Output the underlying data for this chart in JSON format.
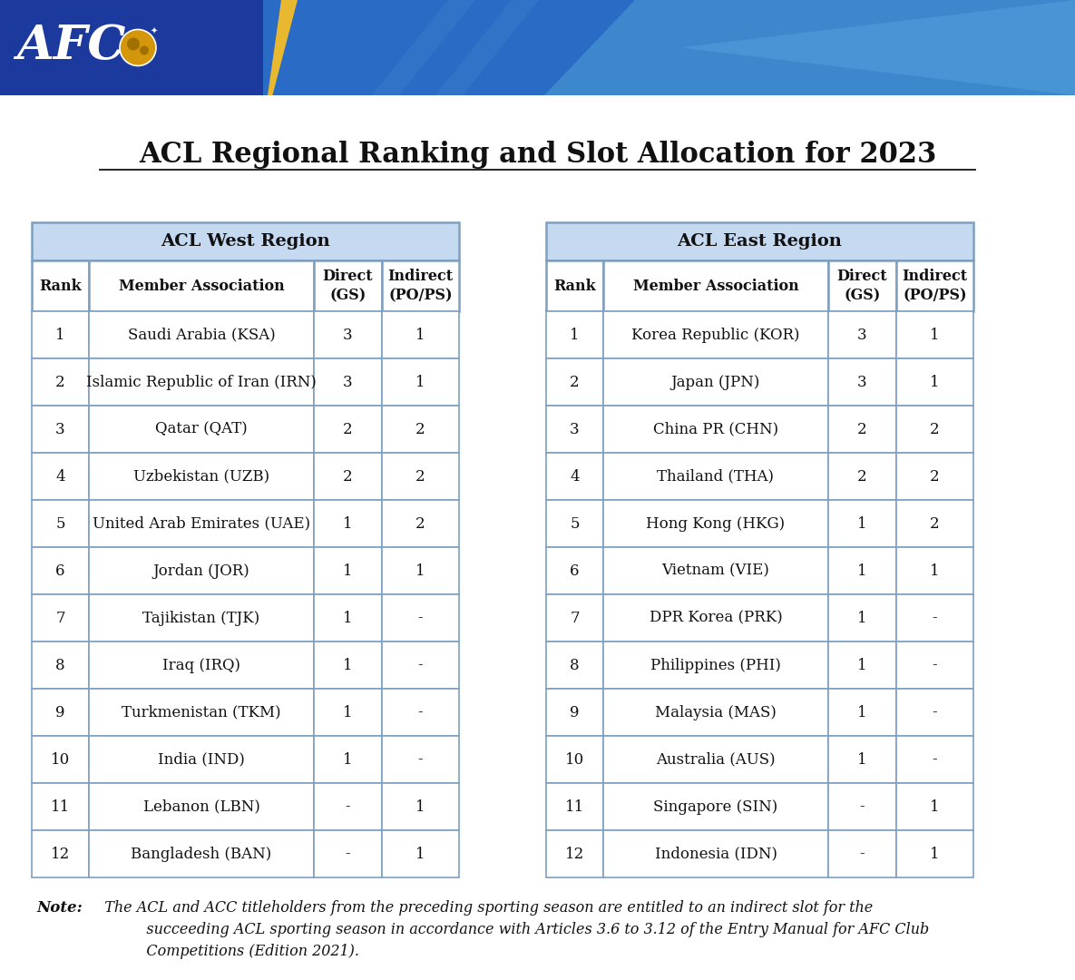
{
  "title": "ACL Regional Ranking and Slot Allocation for 2023",
  "background_color": "#ffffff",
  "header_bg": "#c5d9f1",
  "table_border_color": "#7f9fbf",
  "west_region_title": "ACL West Region",
  "east_region_title": "ACL East Region",
  "col_headers": [
    "Rank",
    "Member Association",
    "Direct\n(GS)",
    "Indirect\n(PO/PS)"
  ],
  "west_data": [
    [
      "1",
      "Saudi Arabia (KSA)",
      "3",
      "1"
    ],
    [
      "2",
      "Islamic Republic of Iran (IRN)",
      "3",
      "1"
    ],
    [
      "3",
      "Qatar (QAT)",
      "2",
      "2"
    ],
    [
      "4",
      "Uzbekistan (UZB)",
      "2",
      "2"
    ],
    [
      "5",
      "United Arab Emirates (UAE)",
      "1",
      "2"
    ],
    [
      "6",
      "Jordan (JOR)",
      "1",
      "1"
    ],
    [
      "7",
      "Tajikistan (TJK)",
      "1",
      "-"
    ],
    [
      "8",
      "Iraq (IRQ)",
      "1",
      "-"
    ],
    [
      "9",
      "Turkmenistan (TKM)",
      "1",
      "-"
    ],
    [
      "10",
      "India (IND)",
      "1",
      "-"
    ],
    [
      "11",
      "Lebanon (LBN)",
      "-",
      "1"
    ],
    [
      "12",
      "Bangladesh (BAN)",
      "-",
      "1"
    ]
  ],
  "east_data": [
    [
      "1",
      "Korea Republic (KOR)",
      "3",
      "1"
    ],
    [
      "2",
      "Japan (JPN)",
      "3",
      "1"
    ],
    [
      "3",
      "China PR (CHN)",
      "2",
      "2"
    ],
    [
      "4",
      "Thailand (THA)",
      "2",
      "2"
    ],
    [
      "5",
      "Hong Kong (HKG)",
      "1",
      "2"
    ],
    [
      "6",
      "Vietnam (VIE)",
      "1",
      "1"
    ],
    [
      "7",
      "DPR Korea (PRK)",
      "1",
      "-"
    ],
    [
      "8",
      "Philippines (PHI)",
      "1",
      "-"
    ],
    [
      "9",
      "Malaysia (MAS)",
      "1",
      "-"
    ],
    [
      "10",
      "Australia (AUS)",
      "1",
      "-"
    ],
    [
      "11",
      "Singapore (SIN)",
      "-",
      "1"
    ],
    [
      "12",
      "Indonesia (IDN)",
      "-",
      "1"
    ]
  ],
  "note_label": "Note:",
  "note_body": "  The ACL and ACC titleholders from the preceding sporting season are entitled to an indirect slot for the\n           succeeding ACL sporting season in accordance with Articles 3.6 to 3.12 of the Entry Manual for AFC Club\n           Competitions (Edition 2021).",
  "banner_blue1": "#1c3a9e",
  "banner_blue2": "#2a6bc5",
  "banner_blue3": "#4a9ad4",
  "banner_yellow": "#e8b830",
  "fig_width": 11.85,
  "fig_height": 10.8,
  "dpi": 100
}
